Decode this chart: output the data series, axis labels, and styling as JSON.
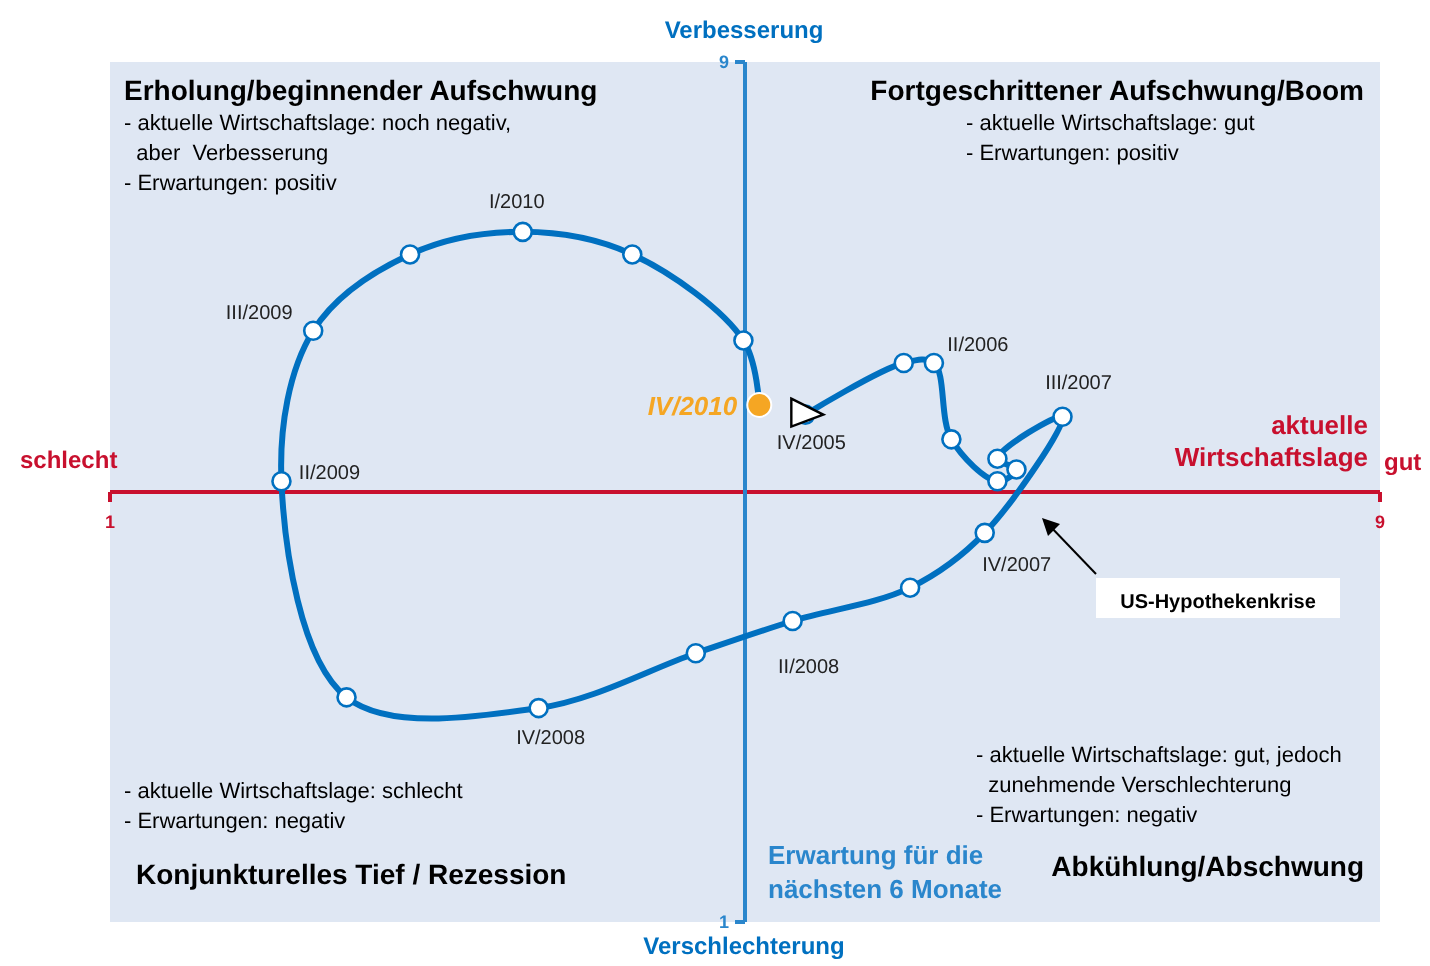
{
  "chart_data": {
    "type": "line",
    "xlabel": "aktuelle Wirtschaftslage",
    "ylabel": "Erwartung für die nächsten 6 Monate",
    "xlim": [
      1,
      9
    ],
    "ylim": [
      1,
      9
    ],
    "xticks": [
      1,
      9
    ],
    "yticks": [
      1,
      9
    ],
    "series": [
      {
        "color": "#0070c0",
        "marker": "circle",
        "x": [
          5.38,
          6.0,
          6.19,
          6.3,
          6.59,
          6.71,
          6.59,
          7.0,
          6.51,
          6.04,
          5.3,
          4.69,
          3.7,
          2.49,
          2.08,
          2.28,
          2.89,
          3.6,
          4.29,
          4.99,
          5.09
        ],
        "values": [
          5.72,
          6.2,
          6.2,
          5.49,
          5.1,
          5.21,
          5.31,
          5.7,
          4.62,
          4.11,
          3.8,
          3.5,
          2.99,
          3.09,
          5.1,
          6.5,
          7.21,
          7.42,
          7.21,
          6.41,
          5.81
        ]
      },
      {
        "type": "scatter",
        "color": "#000000",
        "marker": "triangle",
        "x": [
          5.38
        ],
        "values": [
          5.72
        ]
      },
      {
        "type": "scatter",
        "name": "IV/2010",
        "color": "#f5a623",
        "marker": "circle",
        "x": [
          5.09
        ],
        "values": [
          5.81
        ]
      }
    ],
    "annotations": [
      "Erholung/beginnender Aufschwung",
      "- aktuelle Wirtschaftslage: noch negativ,\n  aber  Verbesserung\n- Erwartungen: positiv",
      "Fortgeschrittener Aufschwung/Boom",
      "- aktuelle Wirtschaftslage: gut\n- Erwartungen: positiv",
      "- aktuelle Wirtschaftslage: schlecht\n- Erwartungen: negativ",
      "Konjunkturelles Tief / Rezession",
      "- aktuelle Wirtschaftslage: gut, jedoch\n  zunehmende Verschlechterung\n- Erwartungen: negativ",
      "Abkühlung/Abschwung",
      "schlecht",
      "gut",
      "Verbesserung",
      "Verschlechterung",
      {
        "text": "I/2010",
        "x": 3.6,
        "y": 7.42
      },
      {
        "text": "III/2009",
        "x": 2.28,
        "y": 6.5
      },
      {
        "text": "II/2009",
        "x": 2.08,
        "y": 5.1
      },
      {
        "text": "IV/2005",
        "x": 5.38,
        "y": 5.72
      },
      {
        "text": "II/2006",
        "x": 6.19,
        "y": 6.2
      },
      {
        "text": "III/2007",
        "x": 7.0,
        "y": 5.7
      },
      {
        "text": "IV/2007",
        "x": 6.51,
        "y": 4.62
      },
      {
        "text": "II/2008",
        "x": 5.3,
        "y": 3.8
      },
      {
        "text": "IV/2008",
        "x": 3.7,
        "y": 2.99
      },
      "US-Hypothekenkrise"
    ]
  }
}
